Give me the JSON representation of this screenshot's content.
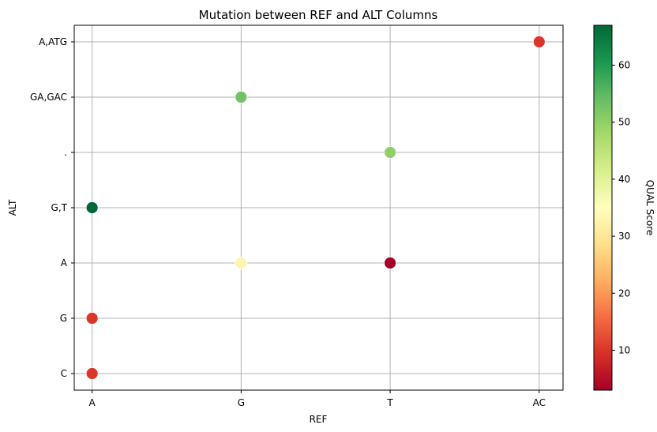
{
  "chart_data": {
    "type": "scatter",
    "title": "Mutation between REF and ALT Columns",
    "xlabel": "REF",
    "ylabel": "ALT",
    "x_categories": [
      "A",
      "G",
      "T",
      "AC"
    ],
    "y_categories": [
      "C",
      "G",
      "A",
      "G,T",
      ".",
      "GA,GAC",
      "A,ATG"
    ],
    "points": [
      {
        "x": "A",
        "y": "C",
        "qual": 10
      },
      {
        "x": "A",
        "y": "G",
        "qual": 10
      },
      {
        "x": "A",
        "y": "G,T",
        "qual": 67
      },
      {
        "x": "G",
        "y": "A",
        "qual": 33
      },
      {
        "x": "T",
        "y": "A",
        "qual": 3
      },
      {
        "x": "T",
        "y": ".",
        "qual": 50
      },
      {
        "x": "G",
        "y": "GA,GAC",
        "qual": 53
      },
      {
        "x": "AC",
        "y": "A,ATG",
        "qual": 10
      }
    ],
    "grid": true,
    "colorbar": {
      "label": "QUAL Score",
      "colormap": "RdYlGn",
      "range": [
        3,
        67
      ],
      "ticks": [
        10,
        20,
        30,
        40,
        50,
        60
      ]
    }
  }
}
